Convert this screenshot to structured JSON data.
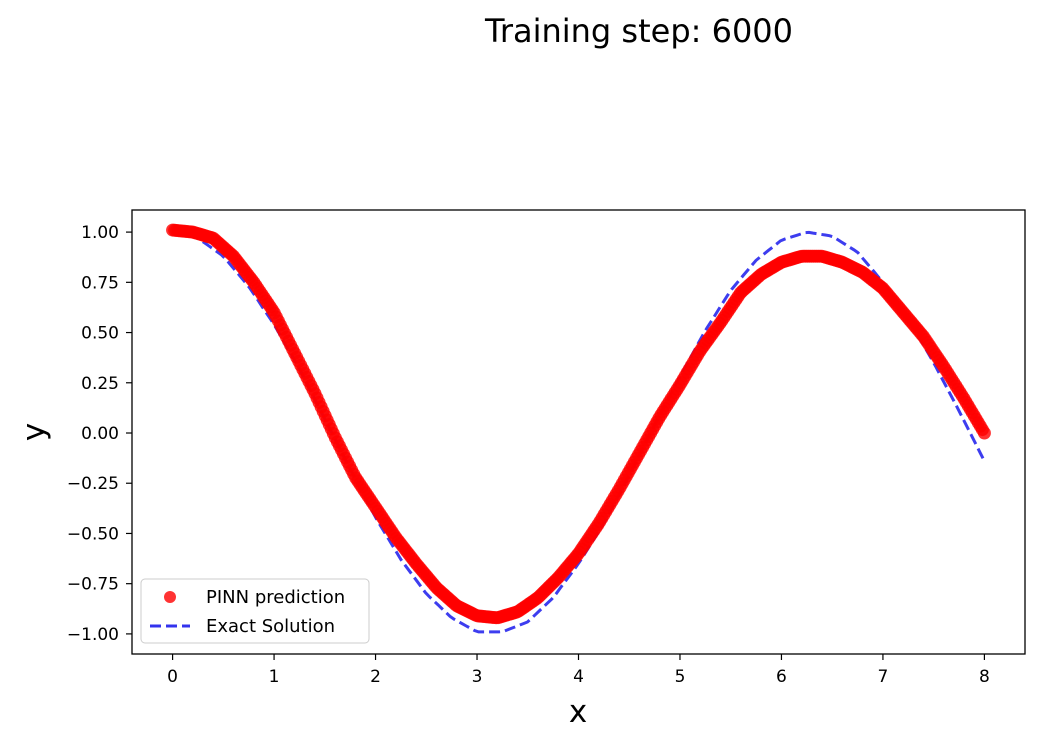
{
  "figure": {
    "suptitle": "Training step: 6000"
  },
  "chart_data": {
    "type": "scatter",
    "title": "",
    "xlabel": "x",
    "ylabel": "y",
    "xlim": [
      -0.4,
      8.4
    ],
    "ylim": [
      -1.1,
      1.11
    ],
    "x_ticks": [
      0,
      1,
      2,
      3,
      4,
      5,
      6,
      7,
      8
    ],
    "x_tick_labels": [
      "0",
      "1",
      "2",
      "3",
      "4",
      "5",
      "6",
      "7",
      "8"
    ],
    "y_ticks": [
      1.0,
      0.75,
      0.5,
      0.25,
      0.0,
      -0.25,
      -0.5,
      -0.75,
      -1.0
    ],
    "y_tick_labels": [
      "1.00",
      "0.75",
      "0.50",
      "0.25",
      "0.00",
      "−0.25",
      "−0.50",
      "−0.75",
      "−1.00"
    ],
    "grid": false,
    "legend_position": "lower-left",
    "legend": [
      "PINN prediction",
      "Exact Solution"
    ],
    "series": [
      {
        "name": "PINN prediction",
        "kind": "scatter",
        "color": "#ff0000",
        "x": [
          0.0,
          0.2,
          0.4,
          0.6,
          0.8,
          1.0,
          1.2,
          1.4,
          1.6,
          1.8,
          2.0,
          2.2,
          2.4,
          2.6,
          2.8,
          3.0,
          3.2,
          3.4,
          3.6,
          3.8,
          4.0,
          4.2,
          4.4,
          4.6,
          4.8,
          5.0,
          5.2,
          5.4,
          5.6,
          5.8,
          6.0,
          6.2,
          6.4,
          6.6,
          6.8,
          7.0,
          7.2,
          7.4,
          7.6,
          7.8,
          8.0
        ],
        "y": [
          1.01,
          1.0,
          0.97,
          0.88,
          0.75,
          0.6,
          0.4,
          0.2,
          -0.02,
          -0.22,
          -0.37,
          -0.52,
          -0.65,
          -0.77,
          -0.86,
          -0.91,
          -0.92,
          -0.89,
          -0.82,
          -0.72,
          -0.6,
          -0.45,
          -0.28,
          -0.1,
          0.08,
          0.24,
          0.41,
          0.55,
          0.7,
          0.79,
          0.85,
          0.88,
          0.88,
          0.85,
          0.8,
          0.72,
          0.6,
          0.48,
          0.33,
          0.17,
          0.0
        ]
      },
      {
        "name": "Exact Solution",
        "kind": "line",
        "style": "dashed",
        "color": "#3333ee",
        "x": [
          0.0,
          0.25,
          0.5,
          0.75,
          1.0,
          1.25,
          1.5,
          1.75,
          2.0,
          2.25,
          2.5,
          2.75,
          3.0,
          3.25,
          3.5,
          3.75,
          4.0,
          4.25,
          4.5,
          4.75,
          5.0,
          5.25,
          5.5,
          5.75,
          6.0,
          6.25,
          6.5,
          6.75,
          7.0,
          7.25,
          7.5,
          7.75,
          8.0
        ],
        "y": [
          1.0,
          0.97,
          0.88,
          0.73,
          0.54,
          0.32,
          0.07,
          -0.18,
          -0.42,
          -0.63,
          -0.8,
          -0.92,
          -0.99,
          -0.99,
          -0.94,
          -0.82,
          -0.65,
          -0.45,
          -0.21,
          0.04,
          0.28,
          0.51,
          0.71,
          0.86,
          0.96,
          1.0,
          0.98,
          0.9,
          0.75,
          0.57,
          0.35,
          0.11,
          -0.14
        ]
      }
    ]
  }
}
